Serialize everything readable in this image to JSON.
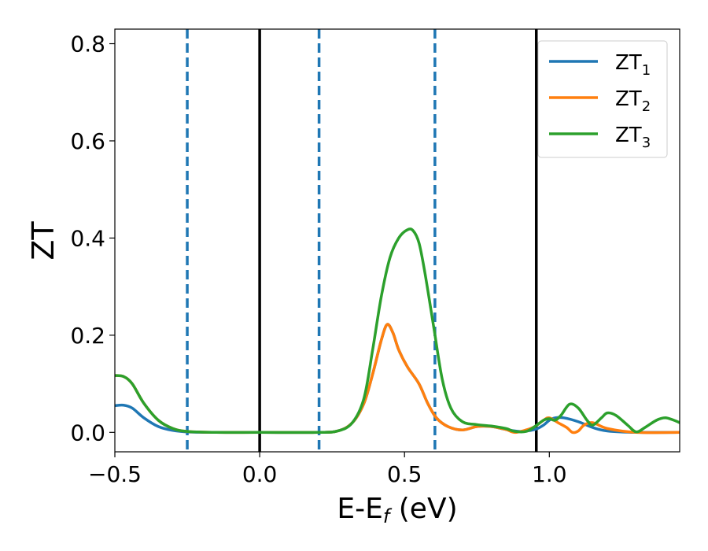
{
  "chart_data": {
    "type": "line",
    "xlabel": "E-E",
    "xlabel_sub": "f",
    "xlabel_unit": " (eV)",
    "ylabel": "ZT",
    "xlim": [
      -0.5,
      1.45
    ],
    "ylim": [
      -0.04,
      0.83
    ],
    "xticks": [
      {
        "value": -0.5,
        "label": "−0.5"
      },
      {
        "value": 0.0,
        "label": "0.0"
      },
      {
        "value": 0.5,
        "label": "0.5"
      },
      {
        "value": 1.0,
        "label": "1.0"
      }
    ],
    "yticks": [
      {
        "value": 0.0,
        "label": "0.0"
      },
      {
        "value": 0.2,
        "label": "0.2"
      },
      {
        "value": 0.4,
        "label": "0.4"
      },
      {
        "value": 0.6,
        "label": "0.6"
      },
      {
        "value": 0.8,
        "label": "0.8"
      }
    ],
    "legend_position": "top-right",
    "vlines_solid": [
      0.0,
      0.955
    ],
    "vlines_dashed": [
      -0.25,
      0.205,
      0.605
    ],
    "series": [
      {
        "name": "ZT",
        "name_sub": "1",
        "color": "#1f77b4",
        "points": [
          [
            -0.5,
            0.055
          ],
          [
            -0.47,
            0.056
          ],
          [
            -0.44,
            0.05
          ],
          [
            -0.4,
            0.03
          ],
          [
            -0.35,
            0.012
          ],
          [
            -0.3,
            0.004
          ],
          [
            -0.25,
            0.001
          ],
          [
            -0.15,
            0
          ],
          [
            0.0,
            0
          ],
          [
            0.2,
            0
          ],
          [
            0.27,
            0.003
          ],
          [
            0.32,
            0.02
          ],
          [
            0.36,
            0.06
          ],
          [
            0.39,
            0.12
          ],
          [
            0.42,
            0.19
          ],
          [
            0.44,
            0.222
          ],
          [
            0.46,
            0.205
          ],
          [
            0.48,
            0.17
          ],
          [
            0.51,
            0.135
          ],
          [
            0.55,
            0.1
          ],
          [
            0.58,
            0.06
          ],
          [
            0.61,
            0.03
          ],
          [
            0.65,
            0.012
          ],
          [
            0.7,
            0.005
          ],
          [
            0.75,
            0.012
          ],
          [
            0.8,
            0.012
          ],
          [
            0.85,
            0.006
          ],
          [
            0.9,
            0.002
          ],
          [
            0.95,
            0.006
          ],
          [
            0.98,
            0.015
          ],
          [
            1.0,
            0.025
          ],
          [
            1.02,
            0.03
          ],
          [
            1.05,
            0.03
          ],
          [
            1.1,
            0.022
          ],
          [
            1.15,
            0.01
          ],
          [
            1.2,
            0.003
          ],
          [
            1.3,
            0.0
          ],
          [
            1.45,
            0.0
          ]
        ]
      },
      {
        "name": "ZT",
        "name_sub": "2",
        "color": "#ff7f0e",
        "points": [
          [
            -0.5,
            0.117
          ],
          [
            -0.47,
            0.115
          ],
          [
            -0.44,
            0.1
          ],
          [
            -0.4,
            0.06
          ],
          [
            -0.35,
            0.025
          ],
          [
            -0.3,
            0.008
          ],
          [
            -0.25,
            0.002
          ],
          [
            -0.15,
            0
          ],
          [
            0.0,
            0
          ],
          [
            0.2,
            0
          ],
          [
            0.27,
            0.003
          ],
          [
            0.32,
            0.02
          ],
          [
            0.36,
            0.06
          ],
          [
            0.39,
            0.12
          ],
          [
            0.42,
            0.19
          ],
          [
            0.44,
            0.222
          ],
          [
            0.46,
            0.205
          ],
          [
            0.48,
            0.17
          ],
          [
            0.51,
            0.135
          ],
          [
            0.55,
            0.1
          ],
          [
            0.58,
            0.06
          ],
          [
            0.61,
            0.03
          ],
          [
            0.65,
            0.012
          ],
          [
            0.7,
            0.005
          ],
          [
            0.75,
            0.012
          ],
          [
            0.8,
            0.012
          ],
          [
            0.85,
            0.006
          ],
          [
            0.88,
            0.0
          ],
          [
            0.92,
            0.005
          ],
          [
            0.95,
            0.012
          ],
          [
            0.98,
            0.025
          ],
          [
            1.0,
            0.03
          ],
          [
            1.03,
            0.02
          ],
          [
            1.06,
            0.01
          ],
          [
            1.08,
            0.0
          ],
          [
            1.1,
            0.003
          ],
          [
            1.12,
            0.015
          ],
          [
            1.15,
            0.02
          ],
          [
            1.2,
            0.008
          ],
          [
            1.3,
            0.0
          ],
          [
            1.45,
            0.0
          ]
        ]
      },
      {
        "name": "ZT",
        "name_sub": "3",
        "color": "#2ca02c",
        "points": [
          [
            -0.5,
            0.117
          ],
          [
            -0.47,
            0.115
          ],
          [
            -0.44,
            0.1
          ],
          [
            -0.4,
            0.06
          ],
          [
            -0.35,
            0.025
          ],
          [
            -0.3,
            0.008
          ],
          [
            -0.25,
            0.002
          ],
          [
            -0.15,
            0
          ],
          [
            0.0,
            0
          ],
          [
            0.2,
            0
          ],
          [
            0.27,
            0.003
          ],
          [
            0.32,
            0.02
          ],
          [
            0.36,
            0.07
          ],
          [
            0.39,
            0.17
          ],
          [
            0.42,
            0.28
          ],
          [
            0.45,
            0.36
          ],
          [
            0.48,
            0.4
          ],
          [
            0.51,
            0.417
          ],
          [
            0.53,
            0.415
          ],
          [
            0.55,
            0.39
          ],
          [
            0.57,
            0.33
          ],
          [
            0.6,
            0.22
          ],
          [
            0.63,
            0.11
          ],
          [
            0.66,
            0.05
          ],
          [
            0.7,
            0.022
          ],
          [
            0.75,
            0.016
          ],
          [
            0.8,
            0.013
          ],
          [
            0.85,
            0.008
          ],
          [
            0.88,
            0.002
          ],
          [
            0.92,
            0.002
          ],
          [
            0.95,
            0.012
          ],
          [
            0.98,
            0.025
          ],
          [
            1.0,
            0.028
          ],
          [
            1.02,
            0.025
          ],
          [
            1.04,
            0.035
          ],
          [
            1.07,
            0.058
          ],
          [
            1.1,
            0.05
          ],
          [
            1.13,
            0.025
          ],
          [
            1.15,
            0.015
          ],
          [
            1.18,
            0.03
          ],
          [
            1.2,
            0.04
          ],
          [
            1.23,
            0.035
          ],
          [
            1.27,
            0.015
          ],
          [
            1.3,
            0.001
          ],
          [
            1.33,
            0.01
          ],
          [
            1.37,
            0.025
          ],
          [
            1.4,
            0.03
          ],
          [
            1.43,
            0.025
          ],
          [
            1.45,
            0.02
          ]
        ]
      }
    ]
  }
}
